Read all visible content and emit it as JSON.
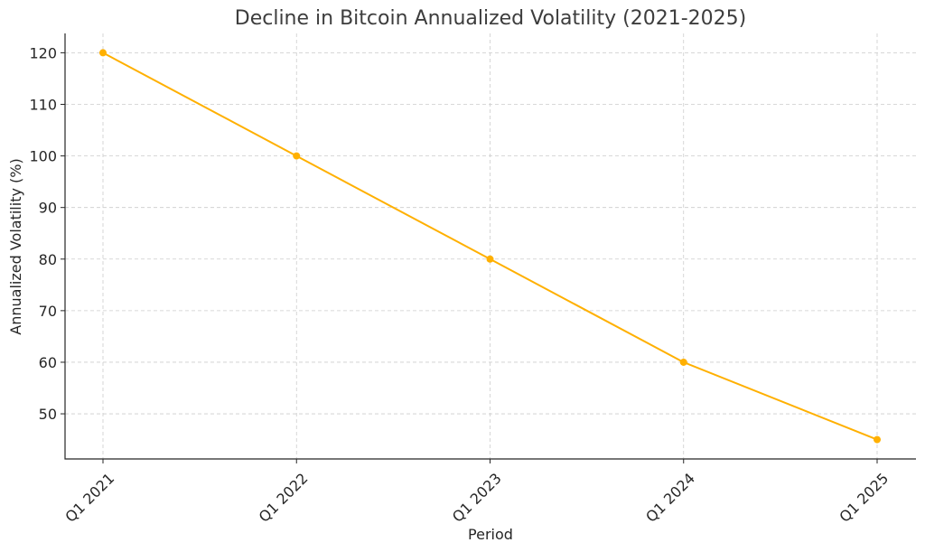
{
  "chart_data": {
    "type": "line",
    "title": "Decline in Bitcoin Annualized Volatility (2021-2025)",
    "xlabel": "Period",
    "ylabel": "Annualized Volatility (%)",
    "categories": [
      "Q1 2021",
      "Q1 2022",
      "Q1 2023",
      "Q1 2024",
      "Q1 2025"
    ],
    "series": [
      {
        "values": [
          120,
          100,
          80,
          60,
          45
        ],
        "color": "#ffb000"
      }
    ],
    "yticks": [
      50,
      60,
      70,
      80,
      90,
      100,
      110,
      120
    ],
    "ylim": [
      41.25,
      123.75
    ],
    "grid": true,
    "marker": "circle"
  }
}
